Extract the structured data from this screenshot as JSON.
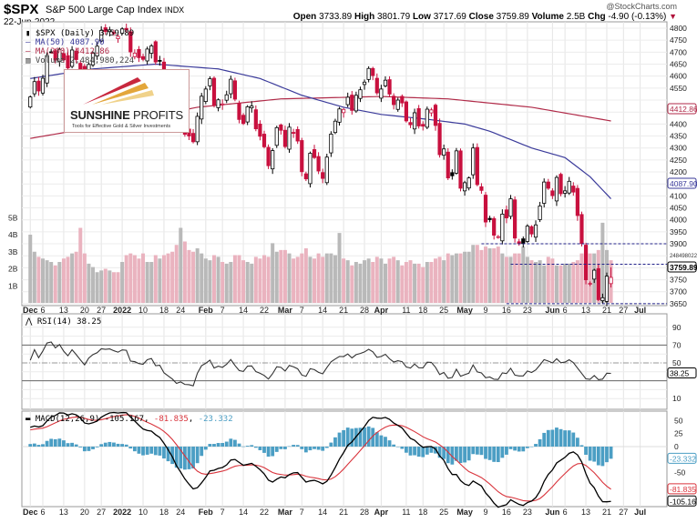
{
  "header": {
    "symbol": "$SPX",
    "name": "S&P 500 Large Cap Index",
    "exchange": "INDX",
    "date": "22-Jun-2022",
    "copyright": "@StockCharts.com",
    "open_label": "Open",
    "open": "3733.89",
    "high_label": "High",
    "high": "3801.79",
    "low_label": "Low",
    "low": "3717.69",
    "close_label": "Close",
    "close": "3759.89",
    "volume_label": "Volume",
    "volume": "2.5B",
    "chg_label": "Chg",
    "chg": "-4.90 (-0.13%)",
    "chg_icon": "down-triangle-icon"
  },
  "legend": {
    "price": "$SPX (Daily) 3759.89",
    "ma50": "MA(50) 4087.90",
    "ma200": "MA(200) 4412.86",
    "volume": "Volume 2,484,980,224",
    "rsi": "RSI(14) 38.25",
    "macd_name": "MACD(12,26,9)",
    "macd": "-105.167",
    "signal": "-81.835",
    "hist": "-23.332"
  },
  "logo": {
    "brand_bold": "SUNSHINE",
    "brand_light": "PROFITS",
    "tagline": "Tools for Effective Gold & Silver Investments"
  },
  "colors": {
    "down": "#c8103e",
    "up": "#000000",
    "ma50": "#3a3a9a",
    "ma200": "#b02a48",
    "vol_down": "#eab3bf",
    "vol_up": "#b9b9b9",
    "hist": "#4b9ec4",
    "signal": "#d9343c"
  },
  "chart_data": {
    "type": "candlestick",
    "title": "$SPX S&P 500 Large Cap Index (Daily)",
    "period": "Dec 2021 - 22 Jun 2022",
    "closes": [
      4513,
      4577,
      4538,
      4591,
      4686,
      4701,
      4667,
      4712,
      4668,
      4634,
      4709,
      4669,
      4621,
      4568,
      4649,
      4697,
      4725,
      4791,
      4786,
      4793,
      4778,
      4766,
      4797,
      4794,
      4701,
      4696,
      4677,
      4670,
      4713,
      4726,
      4659,
      4663,
      4577,
      4533,
      4483,
      4398,
      4410,
      4357,
      4350,
      4326,
      4432,
      4516,
      4546,
      4589,
      4477,
      4501,
      4484,
      4522,
      4587,
      4504,
      4419,
      4402,
      4472,
      4475,
      4380,
      4349,
      4305,
      4226,
      4289,
      4385,
      4374,
      4306,
      4387,
      4364,
      4329,
      4201,
      4171,
      4278,
      4260,
      4204,
      4173,
      4262,
      4358,
      4412,
      4463,
      4461,
      4512,
      4457,
      4520,
      4543,
      4575,
      4632,
      4602,
      4530,
      4546,
      4583,
      4525,
      4481,
      4500,
      4488,
      4413,
      4397,
      4447,
      4392,
      4391,
      4462,
      4459,
      4394,
      4272,
      4296,
      4175,
      4184,
      4288,
      4132,
      4155,
      4175,
      4300,
      4147,
      4123,
      3991,
      4001,
      3936,
      3930,
      4024,
      4008,
      4088,
      3924,
      3901,
      3901,
      3974,
      3941,
      3979,
      4058,
      4158,
      4132,
      4101,
      4177,
      4109,
      4121,
      4161,
      4116,
      4018,
      3901,
      3750,
      3735,
      3790,
      3667,
      3675,
      3765,
      3759.89
    ],
    "volume_billions": [
      4.0,
      3.0,
      2.7,
      2.6,
      2.5,
      2.4,
      2.2,
      2.4,
      2.6,
      2.7,
      2.9,
      3.0,
      4.4,
      2.9,
      2.3,
      2.1,
      1.8,
      1.9,
      2.0,
      1.9,
      1.8,
      1.8,
      2.4,
      2.8,
      2.9,
      2.8,
      2.6,
      2.9,
      2.4,
      2.4,
      2.8,
      2.6,
      2.8,
      2.9,
      3.0,
      3.4,
      4.4,
      3.6,
      3.1,
      3.0,
      3.2,
      2.9,
      2.6,
      2.5,
      2.8,
      2.7,
      2.4,
      2.3,
      2.4,
      2.8,
      2.8,
      2.5,
      2.4,
      2.3,
      2.7,
      2.6,
      2.8,
      2.7,
      3.5,
      3.0,
      3.1,
      3.1,
      2.9,
      2.6,
      2.7,
      2.9,
      3.2,
      2.7,
      2.6,
      2.9,
      2.7,
      2.9,
      2.9,
      2.8,
      4.1,
      2.6,
      2.5,
      2.2,
      2.4,
      2.3,
      2.5,
      2.6,
      2.4,
      2.7,
      2.6,
      2.3,
      2.6,
      2.7,
      2.5,
      2.2,
      2.4,
      2.5,
      2.3,
      2.3,
      2.1,
      2.4,
      2.4,
      2.6,
      2.7,
      2.5,
      2.9,
      2.8,
      2.9,
      2.9,
      3.0,
      3.0,
      3.4,
      3.4,
      3.1,
      3.3,
      3.2,
      3.2,
      3.3,
      2.9,
      2.7,
      2.7,
      2.9,
      2.9,
      3.3,
      2.7,
      2.5,
      2.4,
      2.5,
      2.2,
      2.7,
      2.6,
      2.2,
      2.2,
      2.3,
      2.3,
      2.4,
      2.5,
      2.9,
      3.4,
      2.9,
      2.9,
      3.1,
      4.7,
      3.1,
      2.5
    ],
    "ma50_anchors": [
      [
        0,
        4590
      ],
      [
        15,
        4630
      ],
      [
        30,
        4650
      ],
      [
        45,
        4630
      ],
      [
        55,
        4590
      ],
      [
        65,
        4520
      ],
      [
        75,
        4470
      ],
      [
        84,
        4440
      ],
      [
        95,
        4420
      ],
      [
        104,
        4400
      ],
      [
        110,
        4370
      ],
      [
        120,
        4300
      ],
      [
        128,
        4260
      ],
      [
        134,
        4180
      ],
      [
        139,
        4087.9
      ]
    ],
    "ma200_anchors": [
      [
        0,
        4340
      ],
      [
        20,
        4400
      ],
      [
        40,
        4470
      ],
      [
        60,
        4505
      ],
      [
        84,
        4515
      ],
      [
        100,
        4505
      ],
      [
        120,
        4470
      ],
      [
        139,
        4412.86
      ]
    ],
    "horizontal_lines": [
      {
        "price": 3900,
        "from_index": 108
      },
      {
        "price": 3815,
        "from_index": 115
      },
      {
        "price": 3650,
        "from_index": 114
      }
    ],
    "price_axis": {
      "min": 3650,
      "max": 4800,
      "step": 50
    },
    "volume_axis": {
      "ticks": [
        "1B",
        "2B",
        "3B",
        "4B",
        "5B"
      ]
    },
    "rsi_axis": {
      "ticks": [
        10,
        30,
        50,
        70,
        90
      ],
      "overbought": 70,
      "oversold": 30
    },
    "macd_axis": {
      "ticks": [
        50,
        25,
        0,
        -50,
        -75,
        -100
      ]
    },
    "tags": {
      "ma200": "4412.86",
      "ma50": "4087.90",
      "volume": "2484980224",
      "close": "3759.89",
      "rsi": "38.25",
      "hist": "-23.332",
      "signal": "-81.835",
      "macd": "-105.167"
    },
    "x_ticks": [
      [
        "Dec",
        0
      ],
      [
        "6",
        3
      ],
      [
        "13",
        8
      ],
      [
        "20",
        13
      ],
      [
        "27",
        17
      ],
      [
        "2022",
        22
      ],
      [
        "10",
        27
      ],
      [
        "18",
        32
      ],
      [
        "24",
        36
      ],
      [
        "Feb",
        42
      ],
      [
        "7",
        46
      ],
      [
        "14",
        51
      ],
      [
        "22",
        56
      ],
      [
        "Mar",
        61
      ],
      [
        "7",
        65
      ],
      [
        "14",
        70
      ],
      [
        "21",
        75
      ],
      [
        "28",
        80
      ],
      [
        "Apr",
        84
      ],
      [
        "11",
        90
      ],
      [
        "18",
        94
      ],
      [
        "25",
        99
      ],
      [
        "May",
        104
      ],
      [
        "9",
        109
      ],
      [
        "16",
        114
      ],
      [
        "23",
        119
      ],
      [
        "Jun",
        125
      ],
      [
        "6",
        128
      ],
      [
        "13",
        133
      ],
      [
        "21",
        138
      ],
      [
        "27",
        142
      ],
      [
        "Jul",
        146
      ]
    ]
  }
}
